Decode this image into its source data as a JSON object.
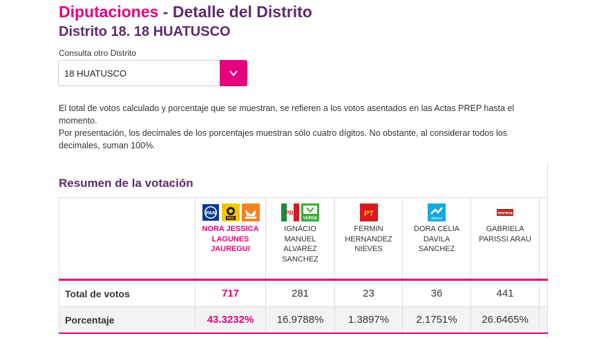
{
  "header": {
    "title_part1": "Diputaciones",
    "title_part2": " - Detalle del Distrito",
    "subtitle": "Distrito 18. 18 HUATUSCO"
  },
  "district_select": {
    "label": "Consulta otro Distrito",
    "value": "18 HUATUSCO",
    "button_glyph": "∨"
  },
  "notes": [
    "El total de votos calculado y porcentaje que se muestran, se refieren a los votos asentados en las Actas PREP hasta el momento.",
    "Por presentación, los decimales de los porcentajes muestran sólo cuatro dígitos. No obstante, al considerar todos los decimales, suman 100%."
  ],
  "summary": {
    "title": "Resumen de la votación",
    "row_labels": {
      "votes": "Total de votos",
      "percent": "Porcentaje"
    },
    "candidates": [
      {
        "name": "NORA JESSICA LAGUNES JAUREGUI",
        "logos": [
          "PAN",
          "PRD",
          "MC"
        ],
        "votes": "717",
        "percent": "43.3232%",
        "winner": true
      },
      {
        "name": "IGNACIO MANUEL ALVAREZ SANCHEZ",
        "logos": [
          "PRI",
          "VERDE"
        ],
        "votes": "281",
        "percent": "16.9788%",
        "winner": false
      },
      {
        "name": "FERMIN HERNANDEZ NIEVES",
        "logos": [
          "PT"
        ],
        "votes": "23",
        "percent": "1.3897%",
        "winner": false
      },
      {
        "name": "DORA CELIA DAVILA SANCHEZ",
        "logos": [
          "alianza"
        ],
        "votes": "36",
        "percent": "2.1751%",
        "winner": false
      },
      {
        "name": "GABRIELA PARISSI ARAU",
        "logos": [
          "morena"
        ],
        "votes": "441",
        "percent": "26.6465%",
        "winner": false
      }
    ]
  },
  "colors": {
    "accent": "#e6007e",
    "heading": "#5e2a6e"
  }
}
